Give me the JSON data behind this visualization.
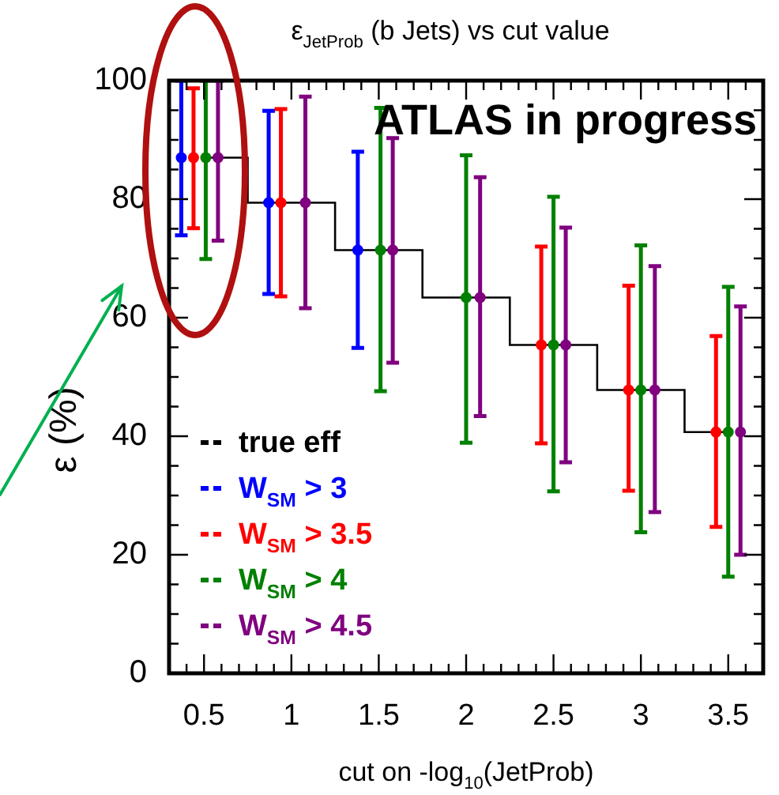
{
  "chart_data": {
    "type": "scatter",
    "title": "ε$_{JetProb}$ (b Jets) vs cut value",
    "xlabel": "cut on -log$_{10}$(JetProb)",
    "ylabel": "ε (%)",
    "annotations": [
      "ATLAS in progress"
    ],
    "xlim": [
      0.3,
      3.7
    ],
    "xticks": [
      {
        "value": 0.3,
        "label": null
      },
      {
        "value": 0.4,
        "label": null
      },
      0.5,
      {
        "value": 0.6,
        "label": null
      },
      {
        "value": 0.7,
        "label": null
      },
      {
        "value": 0.8,
        "label": null
      },
      {
        "value": 0.9,
        "label": null
      },
      1,
      {
        "value": 1.1,
        "label": null
      },
      {
        "value": 1.2,
        "label": null
      },
      {
        "value": 1.3,
        "label": null
      },
      {
        "value": 1.4,
        "label": null
      },
      1.5,
      {
        "value": 1.6,
        "label": null
      },
      {
        "value": 1.7,
        "label": null
      },
      {
        "value": 1.8,
        "label": null
      },
      {
        "value": 1.9,
        "label": null
      },
      2,
      {
        "value": 2.1,
        "label": null
      },
      {
        "value": 2.2,
        "label": null
      },
      {
        "value": 2.3,
        "label": null
      },
      {
        "value": 2.4,
        "label": null
      },
      2.5,
      {
        "value": 2.6,
        "label": null
      },
      {
        "value": 2.7,
        "label": null
      },
      {
        "value": 2.8,
        "label": null
      },
      {
        "value": 2.9,
        "label": null
      },
      3,
      {
        "value": 3.1,
        "label": null
      },
      {
        "value": 3.2,
        "label": null
      },
      {
        "value": 3.3,
        "label": null
      },
      {
        "value": 3.4,
        "label": null
      },
      3.5,
      {
        "value": 3.6,
        "label": null
      },
      {
        "value": 3.7,
        "label": null
      }
    ],
    "ylim": [
      0,
      100
    ],
    "yticks": [
      0,
      {
        "value": 5,
        "label": null
      },
      {
        "value": 10,
        "label": null
      },
      {
        "value": 15,
        "label": null
      },
      20,
      {
        "value": 25,
        "label": null
      },
      {
        "value": 30,
        "label": null
      },
      {
        "value": 35,
        "label": null
      },
      40,
      {
        "value": 45,
        "label": null
      },
      {
        "value": 50,
        "label": null
      },
      {
        "value": 55,
        "label": null
      },
      60,
      {
        "value": 65,
        "label": null
      },
      {
        "value": 70,
        "label": null
      },
      {
        "value": 75,
        "label": null
      },
      80,
      {
        "value": 85,
        "label": null
      },
      {
        "value": 90,
        "label": null
      },
      {
        "value": 95,
        "label": null
      },
      100
    ],
    "legend": "bottom left",
    "marker": "circle",
    "series": [
      {
        "type": "step",
        "marker": "none",
        "name": "true eff",
        "color": "#000000",
        "x": [
          0.5,
          1,
          1.5,
          2,
          2.5,
          3,
          3.5
        ],
        "values": [
          87,
          79.4,
          71.4,
          63.4,
          55.4,
          47.8,
          40.7
        ]
      },
      {
        "name": "W$_{SM}$ > 3",
        "color": "#0000ff",
        "x": [
          0.37,
          0.87,
          1.38
        ],
        "values": [
          87,
          79.4,
          71.4
        ],
        "errors": [
          [
            73.9,
            100
          ],
          [
            64,
            94.9
          ],
          [
            54.9,
            88
          ]
        ]
      },
      {
        "name": "W$_{SM}$ > 3.5",
        "color": "#ff0000",
        "x": [
          0.44,
          0.94,
          2.43,
          2.93,
          3.43
        ],
        "values": [
          87,
          79.4,
          55.4,
          47.8,
          40.7
        ],
        "errors": [
          [
            75.1,
            98.7
          ],
          [
            63.6,
            95.2
          ],
          [
            38.8,
            72
          ],
          [
            30.8,
            65.4
          ],
          [
            24.7,
            56.9
          ]
        ]
      },
      {
        "name": "W$_{SM}$ > 4",
        "color": "#008000",
        "x": [
          0.51,
          1.51,
          2,
          2.5,
          3,
          3.5
        ],
        "values": [
          87,
          71.4,
          63.4,
          55.4,
          47.8,
          40.7
        ],
        "errors": [
          [
            69.9,
            100
          ],
          [
            47.6,
            95.4
          ],
          [
            38.9,
            87.4
          ],
          [
            30.7,
            80.4
          ],
          [
            23.8,
            72.2
          ],
          [
            16.3,
            65.2
          ]
        ]
      },
      {
        "name": "W$_{SM}$ > 4.5",
        "color": "#800080",
        "x": [
          0.58,
          1.08,
          1.58,
          2.08,
          2.57,
          3.08,
          3.57
        ],
        "values": [
          87,
          79.4,
          71.4,
          63.4,
          55.4,
          47.8,
          40.7
        ],
        "errors": [
          [
            73,
            100
          ],
          [
            61.6,
            97.3
          ],
          [
            52.4,
            90.3
          ],
          [
            43.4,
            83.7
          ],
          [
            35.6,
            75.2
          ],
          [
            27.2,
            68.7
          ],
          [
            20,
            61.9
          ]
        ]
      }
    ]
  }
}
